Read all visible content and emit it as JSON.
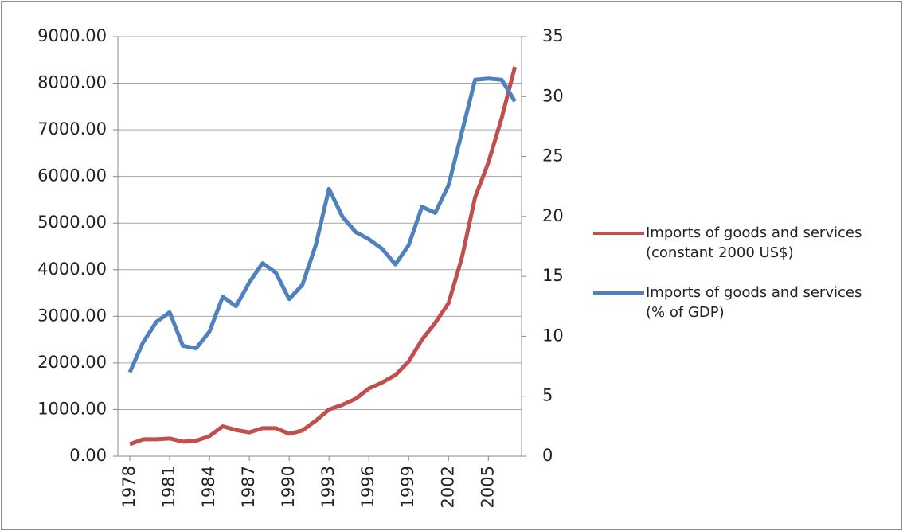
{
  "chart_data": {
    "type": "line",
    "x": [
      1978,
      1979,
      1980,
      1981,
      1982,
      1983,
      1984,
      1985,
      1986,
      1987,
      1988,
      1989,
      1990,
      1991,
      1992,
      1993,
      1994,
      1995,
      1996,
      1997,
      1998,
      1999,
      2000,
      2001,
      2002,
      2003,
      2004,
      2005,
      2006,
      2007
    ],
    "xlim": [
      1977.1,
      2007.5
    ],
    "xticks": [
      1978,
      1981,
      1984,
      1987,
      1990,
      1993,
      1996,
      1999,
      2002,
      2005
    ],
    "ylim": [
      0,
      9000
    ],
    "yticks": [
      {
        "value": 0,
        "label": "0.00"
      },
      {
        "value": 1000,
        "label": "1000.00"
      },
      {
        "value": 2000,
        "label": "2000.00"
      },
      {
        "value": 3000,
        "label": "3000.00"
      },
      {
        "value": 4000,
        "label": "4000.00"
      },
      {
        "value": 5000,
        "label": "5000.00"
      },
      {
        "value": 6000,
        "label": "6000.00"
      },
      {
        "value": 7000,
        "label": "7000.00"
      },
      {
        "value": 8000,
        "label": "8000.00"
      },
      {
        "value": 9000,
        "label": "9000.00"
      }
    ],
    "y2lim": [
      0,
      35
    ],
    "y2ticks": [
      0,
      5,
      10,
      15,
      20,
      25,
      30,
      35
    ],
    "grid": true,
    "legend": "right",
    "series": [
      {
        "name": "Imports of goods and services (constant 2000 US$)",
        "color": "#c0504d",
        "values": [
          256,
          360,
          360,
          378,
          310,
          330,
          430,
          640,
          560,
          510,
          600,
          600,
          480,
          550,
          760,
          1000,
          1100,
          1230,
          1450,
          1580,
          1740,
          2030,
          2500,
          2860,
          3280,
          4250,
          5550,
          6300,
          7250,
          8350
        ]
      },
      {
        "name": "Imports of goods and services (% of GDP)",
        "color": "#4f81bd",
        "axis": "y2",
        "values": [
          7.0,
          9.5,
          11.2,
          12.0,
          9.2,
          9.0,
          10.4,
          13.3,
          12.5,
          14.5,
          16.1,
          15.3,
          13.1,
          14.3,
          17.6,
          22.3,
          20.0,
          18.7,
          18.1,
          17.3,
          16.0,
          17.6,
          20.8,
          20.3,
          22.6,
          27.0,
          31.4,
          31.5,
          31.4,
          29.6
        ]
      }
    ]
  }
}
